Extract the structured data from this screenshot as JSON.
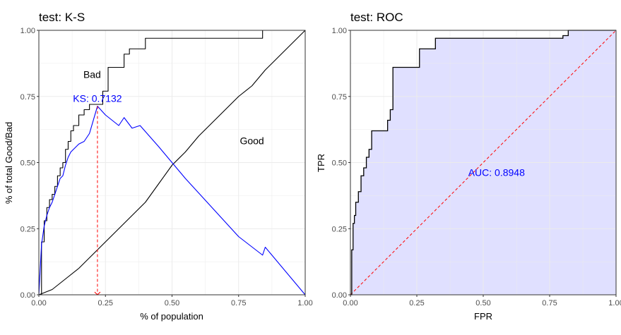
{
  "colors": {
    "grid": "#ebebeb",
    "bad_line": "#000000",
    "good_line": "#000000",
    "ks_line": "#0000ff",
    "ks_marker": "#ff0000",
    "roc_line": "#000000",
    "roc_fill": "#e0e0ff",
    "diagonal": "#ff0000",
    "annotation_blue": "#0000ff"
  },
  "chart_data": [
    {
      "type": "line",
      "title": "test: K-S",
      "xlabel": "% of population",
      "ylabel": "% of total Good/Bad",
      "xlim": [
        0,
        1
      ],
      "ylim": [
        0,
        1
      ],
      "x_ticks": [
        "0.00",
        "0.25",
        "0.50",
        "0.75",
        "1.00"
      ],
      "y_ticks": [
        "0.00",
        "0.25",
        "0.50",
        "0.75",
        "1.00"
      ],
      "grid": true,
      "series": [
        {
          "name": "Bad",
          "color": "#000000",
          "x": [
            0,
            0.01,
            0.02,
            0.03,
            0.04,
            0.05,
            0.06,
            0.07,
            0.08,
            0.09,
            0.1,
            0.11,
            0.12,
            0.13,
            0.15,
            0.17,
            0.19,
            0.22,
            0.24,
            0.26,
            0.3,
            0.32,
            0.34,
            0.37,
            0.4,
            0.5,
            0.6,
            0.7,
            0.8,
            0.84,
            1
          ],
          "y": [
            0,
            0.2,
            0.28,
            0.33,
            0.36,
            0.38,
            0.41,
            0.45,
            0.48,
            0.5,
            0.55,
            0.58,
            0.62,
            0.64,
            0.68,
            0.7,
            0.72,
            0.72,
            0.77,
            0.86,
            0.86,
            0.91,
            0.93,
            0.93,
            0.97,
            0.97,
            0.97,
            0.97,
            0.97,
            1,
            1
          ]
        },
        {
          "name": "Good",
          "color": "#000000",
          "x": [
            0,
            0.05,
            0.1,
            0.15,
            0.2,
            0.25,
            0.3,
            0.35,
            0.4,
            0.45,
            0.5,
            0.55,
            0.6,
            0.65,
            0.7,
            0.75,
            0.8,
            0.85,
            0.9,
            0.95,
            1
          ],
          "y": [
            0,
            0.02,
            0.06,
            0.1,
            0.15,
            0.2,
            0.25,
            0.3,
            0.35,
            0.42,
            0.49,
            0.54,
            0.6,
            0.65,
            0.7,
            0.75,
            0.79,
            0.85,
            0.9,
            0.95,
            1
          ]
        },
        {
          "name": "KS",
          "color": "#0000ff",
          "x": [
            0,
            0.01,
            0.02,
            0.03,
            0.04,
            0.05,
            0.06,
            0.07,
            0.08,
            0.09,
            0.1,
            0.11,
            0.12,
            0.13,
            0.15,
            0.17,
            0.19,
            0.22,
            0.25,
            0.3,
            0.32,
            0.35,
            0.38,
            0.45,
            0.55,
            0.65,
            0.75,
            0.84,
            0.85,
            1
          ],
          "y": [
            0,
            0.19,
            0.26,
            0.3,
            0.33,
            0.35,
            0.38,
            0.41,
            0.44,
            0.45,
            0.49,
            0.52,
            0.54,
            0.55,
            0.57,
            0.58,
            0.61,
            0.7132,
            0.68,
            0.64,
            0.67,
            0.63,
            0.64,
            0.56,
            0.44,
            0.33,
            0.22,
            0.15,
            0.18,
            0
          ]
        }
      ],
      "ks": {
        "x": 0.22,
        "value": 0.7132,
        "label": "KS: 0.7132"
      },
      "annotations": [
        {
          "text": "Bad",
          "x": 0.2,
          "y": 0.82
        },
        {
          "text": "Good",
          "x": 0.8,
          "y": 0.57
        },
        {
          "text": "KS: 0.7132",
          "x": 0.22,
          "y": 0.73
        }
      ]
    },
    {
      "type": "area",
      "title": "test: ROC",
      "xlabel": "FPR",
      "ylabel": "TPR",
      "xlim": [
        0,
        1
      ],
      "ylim": [
        0,
        1
      ],
      "x_ticks": [
        "0.00",
        "0.25",
        "0.50",
        "0.75",
        "1.00"
      ],
      "y_ticks": [
        "0.00",
        "0.25",
        "0.50",
        "0.75",
        "1.00"
      ],
      "grid": true,
      "series": [
        {
          "name": "ROC",
          "color": "#000000",
          "x": [
            0,
            0.005,
            0.01,
            0.015,
            0.02,
            0.03,
            0.04,
            0.05,
            0.06,
            0.07,
            0.08,
            0.1,
            0.14,
            0.15,
            0.16,
            0.2,
            0.26,
            0.3,
            0.32,
            0.5,
            0.7,
            0.8,
            0.82,
            1
          ],
          "y": [
            0,
            0.17,
            0.27,
            0.3,
            0.35,
            0.39,
            0.45,
            0.48,
            0.52,
            0.55,
            0.62,
            0.62,
            0.66,
            0.7,
            0.86,
            0.86,
            0.93,
            0.93,
            0.97,
            0.97,
            0.97,
            0.98,
            1,
            1
          ]
        }
      ],
      "auc": {
        "value": 0.8948,
        "label": "AUC: 0.8948"
      },
      "annotations": [
        {
          "text": "AUC: 0.8948",
          "x": 0.55,
          "y": 0.45
        }
      ]
    }
  ]
}
